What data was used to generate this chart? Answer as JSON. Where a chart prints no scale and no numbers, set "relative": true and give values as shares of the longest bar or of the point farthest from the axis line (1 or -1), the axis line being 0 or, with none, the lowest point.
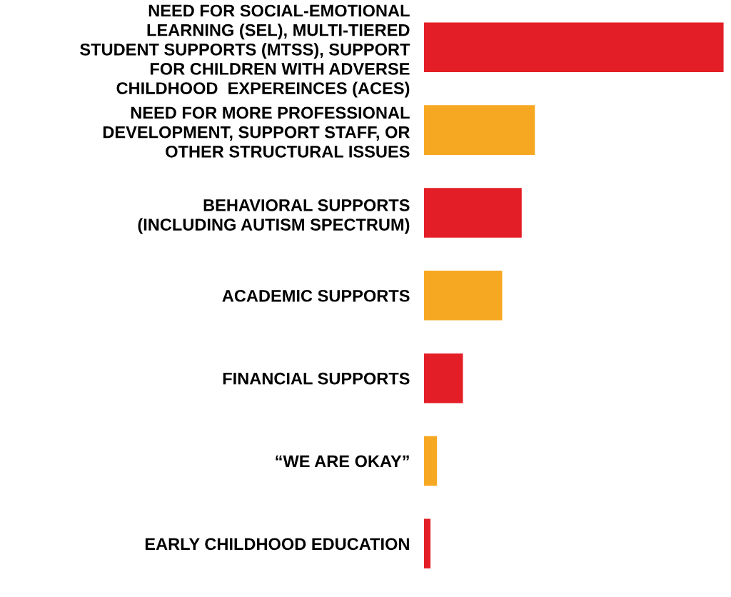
{
  "chart_data": {
    "type": "bar",
    "orientation": "horizontal",
    "relative": true,
    "categories": [
      "NEED FOR SOCIAL-EMOTIONAL\nLEARNING (SEL), MULTI-TIERED\nSTUDENT SUPPORTS (MTSS), SUPPORT\nFOR CHILDREN WITH ADVERSE\nCHILDHOOD  EXPEREINCES (ACES)",
      "NEED FOR MORE PROFESSIONAL\nDEVELOPMENT, SUPPORT STAFF, OR\nOTHER STRUCTURAL ISSUES",
      "BEHAVIORAL SUPPORTS\n(INCLUDING AUTISM SPECTRUM)",
      "ACADEMIC SUPPORTS",
      "FINANCIAL SUPPORTS",
      "“WE ARE OKAY”",
      "EARLY CHILDHOOD EDUCATION"
    ],
    "values": [
      1,
      0.37,
      0.326,
      0.261,
      0.13,
      0.0435,
      0.0217
    ],
    "colors": [
      "#e41e26",
      "#f7a823",
      "#e41e26",
      "#f7a823",
      "#e41e26",
      "#f7a823",
      "#e41e26"
    ],
    "grid": false,
    "legend": false,
    "tick_labels": "y"
  }
}
